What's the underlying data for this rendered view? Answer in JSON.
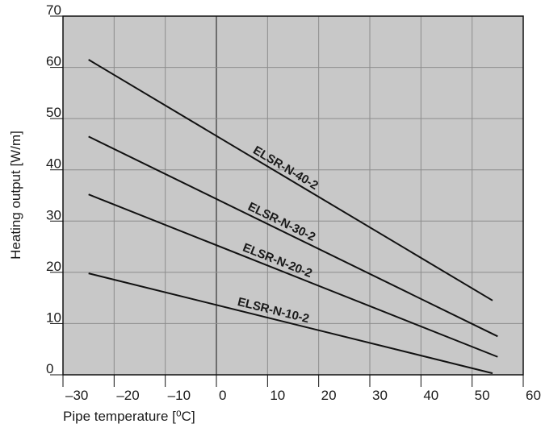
{
  "chart_data": {
    "type": "line",
    "title": "",
    "xlabel": "Pipe temperature [⁰C]",
    "ylabel": "Heating output [W/m]",
    "xlim": [
      -30,
      60
    ],
    "ylim": [
      0,
      70
    ],
    "x_ticks": [
      -30,
      -20,
      -10,
      0,
      10,
      20,
      30,
      40,
      50,
      60
    ],
    "y_ticks": [
      0,
      10,
      20,
      30,
      40,
      50,
      60,
      70
    ],
    "x_tick_labels": [
      "–30",
      "–20",
      "–10",
      "0",
      "10",
      "20",
      "30",
      "40",
      "50",
      "60"
    ],
    "y_tick_labels": [
      "0",
      "10",
      "20",
      "30",
      "40",
      "50",
      "60",
      "70"
    ],
    "grid": true,
    "colors": {
      "plot_bg": "#c8c8c8",
      "grid": "#8c8c8c",
      "line": "#111111",
      "zero_line": "#6e6e6e",
      "frame": "#111111"
    },
    "series": [
      {
        "name": "ELSR-N-40-2",
        "x": [
          -25,
          54
        ],
        "y": [
          61.5,
          14.5
        ]
      },
      {
        "name": "ELSR-N-30-2",
        "x": [
          -25,
          55
        ],
        "y": [
          46.5,
          7.5
        ]
      },
      {
        "name": "ELSR-N-20-2",
        "x": [
          -25,
          55
        ],
        "y": [
          35.2,
          3.5
        ]
      },
      {
        "name": "ELSR-N-10-2",
        "x": [
          -25,
          54
        ],
        "y": [
          19.8,
          0.3
        ]
      }
    ]
  }
}
